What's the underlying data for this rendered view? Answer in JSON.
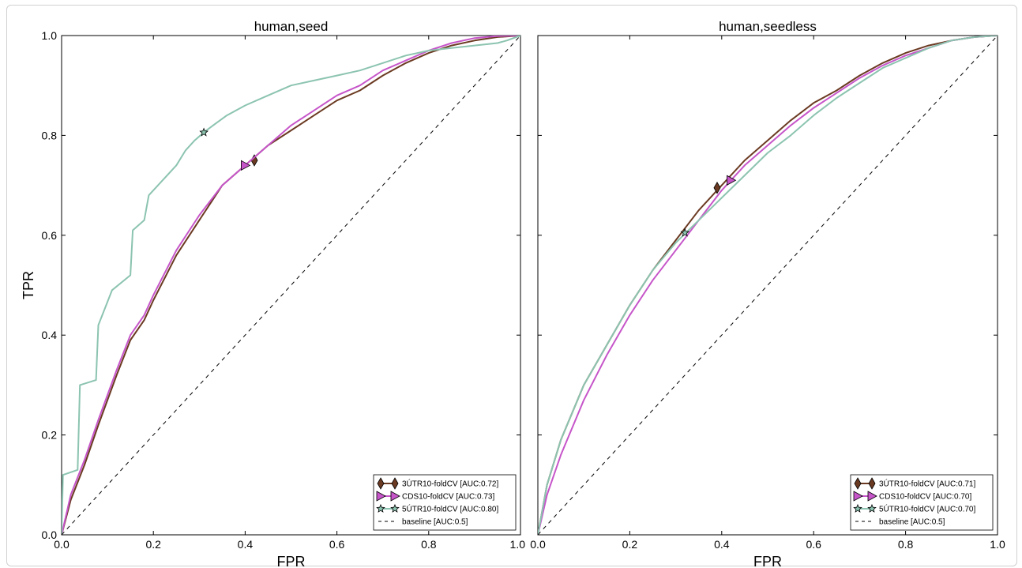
{
  "chart_data": [
    {
      "type": "line",
      "title": "human,seed",
      "xlabel": "FPR",
      "ylabel": "TPR",
      "xlim": [
        0,
        1
      ],
      "ylim": [
        0,
        1
      ],
      "xticks": [
        "0.0",
        "0.2",
        "0.4",
        "0.6",
        "0.8",
        "1.0"
      ],
      "yticks": [
        "0.0",
        "0.2",
        "0.4",
        "0.6",
        "0.8",
        "1.0"
      ],
      "legend_position": "lower-right",
      "series": [
        {
          "name": "3ÚTR10-foldCV [AUC:0.72]",
          "color": "#6b3a22",
          "marker": "diamond",
          "marker_point": [
            0.42,
            0.75
          ],
          "x": [
            0,
            0.02,
            0.05,
            0.08,
            0.1,
            0.12,
            0.15,
            0.18,
            0.2,
            0.25,
            0.3,
            0.35,
            0.4,
            0.45,
            0.5,
            0.55,
            0.6,
            0.65,
            0.7,
            0.75,
            0.8,
            0.85,
            0.9,
            0.95,
            1.0
          ],
          "y": [
            0,
            0.07,
            0.14,
            0.22,
            0.27,
            0.32,
            0.39,
            0.43,
            0.47,
            0.56,
            0.63,
            0.7,
            0.74,
            0.78,
            0.81,
            0.84,
            0.87,
            0.89,
            0.92,
            0.945,
            0.965,
            0.98,
            0.99,
            0.997,
            1.0
          ]
        },
        {
          "name": "CDS10-foldCV [AUC:0.73]",
          "color": "#c655c9",
          "marker": "triangle-right",
          "marker_point": [
            0.4,
            0.74
          ],
          "x": [
            0,
            0.02,
            0.05,
            0.08,
            0.1,
            0.12,
            0.15,
            0.18,
            0.2,
            0.25,
            0.3,
            0.35,
            0.4,
            0.45,
            0.5,
            0.55,
            0.6,
            0.65,
            0.7,
            0.75,
            0.8,
            0.85,
            0.9,
            0.95,
            1.0
          ],
          "y": [
            0,
            0.08,
            0.15,
            0.23,
            0.28,
            0.33,
            0.4,
            0.44,
            0.48,
            0.57,
            0.64,
            0.7,
            0.74,
            0.78,
            0.82,
            0.85,
            0.88,
            0.9,
            0.93,
            0.95,
            0.97,
            0.985,
            0.995,
            0.999,
            1.0
          ]
        },
        {
          "name": "5ÚTR10-foldCV [AUC:0.80]",
          "color": "#8cc4b0",
          "marker": "star",
          "marker_point": [
            0.31,
            0.806
          ],
          "x": [
            0,
            0.003,
            0.035,
            0.04,
            0.075,
            0.08,
            0.11,
            0.15,
            0.155,
            0.18,
            0.19,
            0.22,
            0.25,
            0.27,
            0.29,
            0.31,
            0.33,
            0.36,
            0.4,
            0.45,
            0.5,
            0.55,
            0.6,
            0.65,
            0.7,
            0.75,
            0.8,
            0.85,
            0.9,
            0.95,
            0.97,
            1.0
          ],
          "y": [
            0,
            0.12,
            0.13,
            0.3,
            0.31,
            0.42,
            0.49,
            0.52,
            0.61,
            0.63,
            0.68,
            0.71,
            0.74,
            0.77,
            0.79,
            0.806,
            0.82,
            0.84,
            0.86,
            0.88,
            0.9,
            0.91,
            0.92,
            0.93,
            0.945,
            0.96,
            0.97,
            0.975,
            0.98,
            0.985,
            0.99,
            1.0
          ]
        },
        {
          "name": "baseline [AUC:0.5]",
          "color": "#000000",
          "marker": "none",
          "dashed": true,
          "x": [
            0,
            1
          ],
          "y": [
            0,
            1
          ]
        }
      ]
    },
    {
      "type": "line",
      "title": "human,seedless",
      "xlabel": "FPR",
      "ylabel": "",
      "xlim": [
        0,
        1
      ],
      "ylim": [
        0,
        1
      ],
      "xticks": [
        "0.0",
        "0.2",
        "0.4",
        "0.6",
        "0.8",
        "1.0"
      ],
      "yticks": [],
      "legend_position": "lower-right",
      "series": [
        {
          "name": "3ÚTR10-foldCV [AUC:0.71]",
          "color": "#6b3a22",
          "marker": "diamond",
          "marker_point": [
            0.39,
            0.695
          ],
          "x": [
            0,
            0.02,
            0.05,
            0.1,
            0.15,
            0.2,
            0.25,
            0.3,
            0.35,
            0.4,
            0.45,
            0.5,
            0.55,
            0.6,
            0.65,
            0.7,
            0.75,
            0.8,
            0.85,
            0.9,
            0.95,
            1.0
          ],
          "y": [
            0,
            0.1,
            0.19,
            0.3,
            0.38,
            0.46,
            0.53,
            0.59,
            0.65,
            0.7,
            0.75,
            0.79,
            0.83,
            0.865,
            0.89,
            0.92,
            0.945,
            0.965,
            0.98,
            0.99,
            0.997,
            1.0
          ]
        },
        {
          "name": "CDS10-foldCV [AUC:0.70]",
          "color": "#c655c9",
          "marker": "triangle-right",
          "marker_point": [
            0.42,
            0.71
          ],
          "x": [
            0,
            0.02,
            0.05,
            0.1,
            0.15,
            0.2,
            0.25,
            0.3,
            0.35,
            0.4,
            0.45,
            0.5,
            0.55,
            0.6,
            0.65,
            0.7,
            0.75,
            0.8,
            0.85,
            0.9,
            0.95,
            1.0
          ],
          "y": [
            0,
            0.08,
            0.16,
            0.27,
            0.36,
            0.44,
            0.51,
            0.57,
            0.63,
            0.69,
            0.74,
            0.78,
            0.82,
            0.855,
            0.885,
            0.915,
            0.94,
            0.96,
            0.975,
            0.99,
            0.997,
            1.0
          ]
        },
        {
          "name": "5ÚTR10-foldCV [AUC:0.70]",
          "color": "#8cc4b0",
          "marker": "star",
          "marker_point": [
            0.32,
            0.605
          ],
          "x": [
            0,
            0.02,
            0.05,
            0.1,
            0.15,
            0.2,
            0.25,
            0.3,
            0.35,
            0.4,
            0.45,
            0.5,
            0.55,
            0.6,
            0.65,
            0.7,
            0.75,
            0.8,
            0.85,
            0.9,
            0.95,
            1.0
          ],
          "y": [
            0,
            0.1,
            0.19,
            0.3,
            0.38,
            0.46,
            0.53,
            0.585,
            0.63,
            0.675,
            0.72,
            0.765,
            0.8,
            0.84,
            0.875,
            0.905,
            0.935,
            0.955,
            0.975,
            0.99,
            0.997,
            1.0
          ]
        },
        {
          "name": "baseline [AUC:0.5]",
          "color": "#000000",
          "marker": "none",
          "dashed": true,
          "x": [
            0,
            1
          ],
          "y": [
            0,
            1
          ]
        }
      ]
    }
  ]
}
